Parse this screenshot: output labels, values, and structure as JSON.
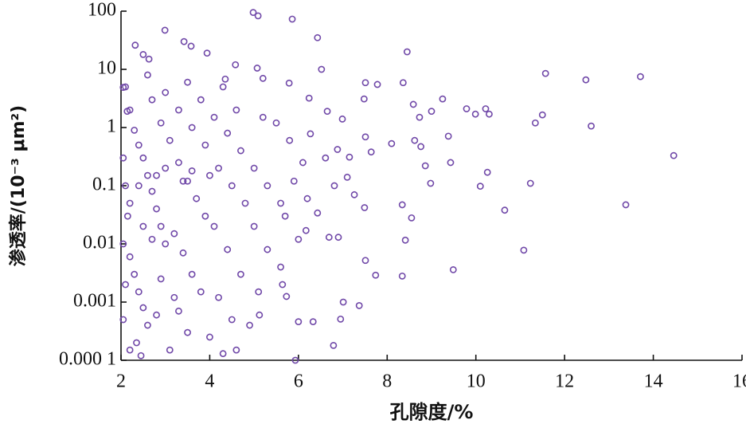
{
  "chart_data": {
    "type": "scatter",
    "xlabel": "孔隙度/%",
    "ylabel": "渗透率/(10⁻³ μm²)",
    "color": "#7048a8",
    "log_y": true,
    "xlim": [
      2,
      16
    ],
    "xticks": [
      2,
      4,
      6,
      8,
      10,
      12,
      14,
      16
    ],
    "ylim": [
      0.0001,
      100
    ],
    "yticks": [
      {
        "value": 0.0001,
        "label": "0.000 1"
      },
      0.001,
      0.01,
      0.1,
      1,
      10,
      100
    ],
    "x": [
      4.98,
      5.09,
      5.86,
      2.99,
      6.43,
      8.45,
      3.42,
      3.58,
      2.32,
      11.57,
      12.48,
      13.71,
      6.52,
      5.07,
      7.51,
      7.78,
      8.36,
      7.48,
      9.25,
      9.79,
      10.22,
      9.99,
      10.3,
      11.5,
      11.34,
      12.6,
      8.59,
      8.73,
      9.0,
      14.46,
      8.1,
      8.62,
      8.76,
      9.38,
      8.86,
      9.43,
      10.26,
      10.1,
      8.98,
      11.23,
      10.65,
      13.38,
      11.08,
      9.49,
      8.34,
      8.55,
      8.34,
      8.41,
      7.74,
      7.51,
      7.37,
      6.79,
      6.95,
      6.33,
      6.0,
      5.93,
      5.12,
      5.64,
      5.73,
      7.01,
      6.69,
      6.9,
      6.17,
      7.26,
      7.49,
      6.81,
      7.1,
      6.43,
      7.15,
      7.64,
      7.51,
      6.88,
      6.61,
      6.27,
      6.99,
      6.65,
      6.24,
      5.79,
      5.2,
      4.58,
      4.35,
      3.94,
      2.5,
      2.63,
      2.05,
      2.14,
      2.1,
      2.2,
      2.3,
      2.4,
      2.5,
      2.6,
      2.7,
      2.8,
      2.9,
      3.0,
      2.2,
      2.3,
      2.4,
      2.5,
      2.6,
      2.35,
      2.45,
      2.05,
      2.1,
      2.15,
      2.05,
      2.1,
      2.05,
      2.2,
      2.7,
      2.9,
      3.1,
      3.3,
      3.5,
      3.7,
      3.9,
      3.2,
      3.4,
      3.6,
      3.8,
      3.3,
      3.5,
      3.1,
      3.0,
      3.3,
      3.6,
      3.9,
      4.2,
      4.5,
      4.8,
      4.1,
      4.4,
      4.7,
      4.2,
      4.5,
      4.0,
      4.3,
      3.5,
      3.8,
      4.1,
      4.4,
      4.7,
      5.0,
      5.3,
      5.6,
      5.0,
      5.3,
      5.6,
      5.1,
      4.9,
      4.6,
      5.5,
      5.8,
      6.1,
      5.9,
      6.2,
      5.7,
      6.0,
      2.6,
      2.8,
      3.0,
      2.4,
      2.2,
      2.7,
      2.5,
      2.9,
      3.2,
      2.8,
      3.4,
      3.6,
      4.0,
      4.6,
      5.2,
      4.3
    ],
    "values": [
      95,
      83,
      73,
      47,
      35,
      20,
      30,
      25,
      26,
      8.5,
      6.6,
      7.5,
      10,
      10.5,
      5.9,
      5.5,
      5.9,
      3.1,
      3.1,
      2.1,
      2.1,
      1.7,
      1.7,
      1.65,
      1.2,
      1.06,
      2.5,
      1.5,
      1.9,
      0.33,
      0.53,
      0.6,
      0.47,
      0.71,
      0.22,
      0.25,
      0.17,
      0.098,
      0.11,
      0.11,
      0.038,
      0.047,
      0.0078,
      0.0036,
      0.0028,
      0.028,
      0.047,
      0.0116,
      0.0029,
      0.0052,
      0.00087,
      0.00018,
      0.00051,
      0.00046,
      0.00046,
      0.0001,
      0.0006,
      0.002,
      0.00125,
      0.001,
      0.013,
      0.013,
      0.017,
      0.07,
      0.042,
      0.1,
      0.14,
      0.034,
      0.31,
      0.38,
      0.69,
      0.42,
      0.3,
      0.78,
      1.4,
      1.9,
      3.2,
      5.8,
      7,
      12,
      6.8,
      19,
      18,
      15,
      4.9,
      1.9,
      5,
      2,
      0.9,
      0.5,
      0.3,
      0.15,
      0.08,
      0.04,
      0.02,
      0.01,
      0.006,
      0.003,
      0.0015,
      0.0008,
      0.0004,
      0.0002,
      0.00012,
      0.3,
      0.1,
      0.03,
      0.01,
      0.002,
      0.0005,
      0.00015,
      3,
      1.2,
      0.6,
      0.25,
      0.12,
      0.06,
      0.03,
      0.015,
      0.007,
      0.003,
      0.0015,
      0.0007,
      0.0003,
      0.00015,
      4,
      2,
      1,
      0.5,
      0.2,
      0.1,
      0.05,
      0.02,
      0.008,
      0.003,
      0.0012,
      0.0005,
      0.00025,
      0.00013,
      6,
      3,
      1.5,
      0.8,
      0.4,
      0.2,
      0.1,
      0.05,
      0.02,
      0.008,
      0.004,
      0.0015,
      0.0004,
      0.00015,
      1.2,
      0.6,
      0.25,
      0.12,
      0.06,
      0.03,
      0.012,
      8,
      0.15,
      0.2,
      0.1,
      0.05,
      0.012,
      0.02,
      0.0025,
      0.0012,
      0.0006,
      0.12,
      0.18,
      0.15,
      2,
      1.5,
      5
    ]
  }
}
